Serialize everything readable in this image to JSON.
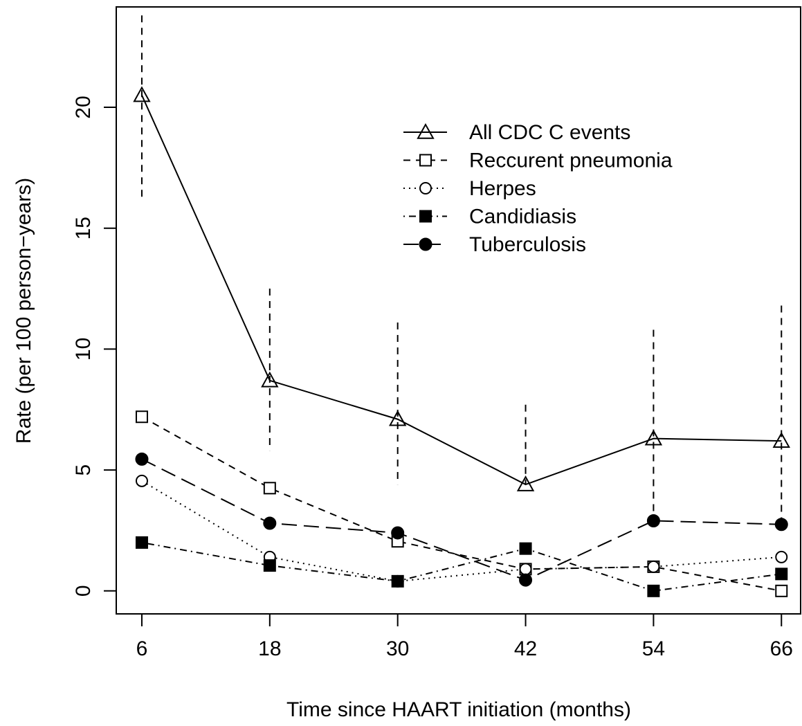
{
  "chart_data": {
    "type": "line",
    "title": "",
    "xlabel": "Time since HAART initiation (months)",
    "ylabel": "Rate (per 100 person−years)",
    "x": [
      6,
      18,
      30,
      42,
      54,
      66
    ],
    "x_tick_labels": [
      "6",
      "18",
      "30",
      "42",
      "54",
      "66"
    ],
    "y_ticks": [
      0,
      5,
      10,
      15,
      20
    ],
    "y_tick_labels": [
      "0",
      "5",
      "10",
      "15",
      "20"
    ],
    "xlim": [
      3.6,
      67.8
    ],
    "ylim": [
      -0.95,
      24.15
    ],
    "grid": false,
    "legend_position": "top-right",
    "series": [
      {
        "name": "All CDC C events",
        "values": [
          20.5,
          8.7,
          7.1,
          4.4,
          6.3,
          6.2
        ],
        "error_low": [
          16.2,
          5.8,
          4.4,
          null,
          3.3,
          2.9
        ],
        "error_high": [
          23.8,
          12.5,
          11.1,
          7.7,
          10.8,
          11.8
        ],
        "marker": "triangle-open",
        "line_style": "solid"
      },
      {
        "name": "Reccurent pneumonia",
        "values": [
          7.2,
          4.25,
          2.05,
          0.9,
          1.0,
          0.0
        ],
        "marker": "square-open",
        "line_style": "dashed"
      },
      {
        "name": "Herpes",
        "values": [
          4.55,
          1.4,
          0.4,
          0.9,
          1.0,
          1.4
        ],
        "marker": "circle-open",
        "line_style": "dotted"
      },
      {
        "name": "Candidiasis",
        "values": [
          2.0,
          1.05,
          0.4,
          1.75,
          0.0,
          0.7
        ],
        "marker": "square-filled",
        "line_style": "dotdash"
      },
      {
        "name": "Tuberculosis",
        "values": [
          5.45,
          2.8,
          2.4,
          0.45,
          2.9,
          2.75
        ],
        "marker": "circle-filled",
        "line_style": "longdash"
      }
    ]
  }
}
